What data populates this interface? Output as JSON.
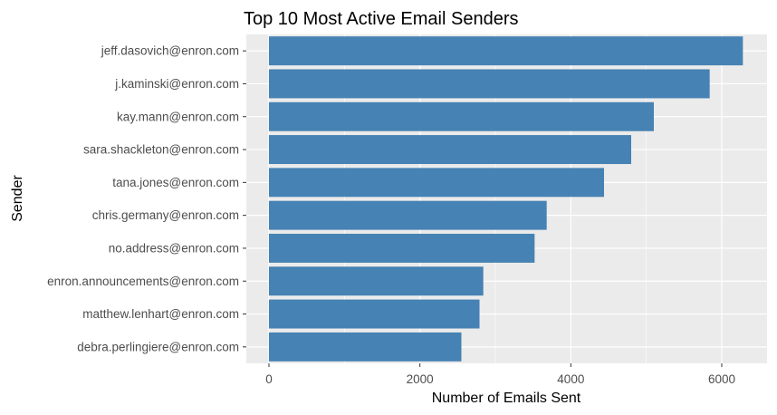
{
  "chart_data": {
    "type": "bar",
    "orientation": "horizontal",
    "title": "Top 10 Most Active Email Senders",
    "xlabel": "Number of Emails Sent",
    "ylabel": "Sender",
    "categories": [
      "jeff.dasovich@enron.com",
      "j.kaminski@enron.com",
      "kay.mann@enron.com",
      "sara.shackleton@enron.com",
      "tana.jones@enron.com",
      "chris.germany@enron.com",
      "no.address@enron.com",
      "enron.announcements@enron.com",
      "matthew.lenhart@enron.com",
      "debra.perlingiere@enron.com"
    ],
    "values": [
      6280,
      5840,
      5100,
      4800,
      4440,
      3680,
      3520,
      2840,
      2790,
      2550
    ],
    "xlim": [
      -300,
      6600
    ],
    "xticks": [
      0,
      2000,
      4000,
      6000
    ],
    "grid": true,
    "bar_color": "#4682B4",
    "panel_color": "#EBEBEB",
    "grid_color": "#FFFFFF"
  }
}
